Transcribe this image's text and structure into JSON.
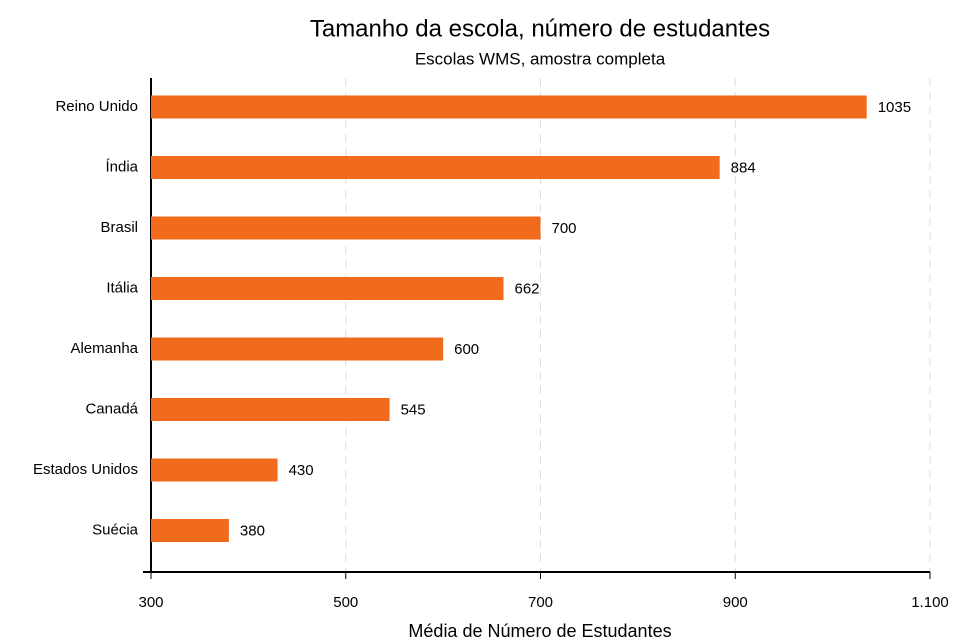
{
  "chart_data": {
    "type": "bar",
    "orientation": "horizontal",
    "title": "Tamanho da escola, número de estudantes",
    "subtitle": "Escolas WMS, amostra completa",
    "xlabel": "Média de Número de Estudantes",
    "categories": [
      "Reino Unido",
      "Índia",
      "Brasil",
      "Itália",
      "Alemanha",
      "Canadá",
      "Estados Unidos",
      "Suécia"
    ],
    "values": [
      1035,
      884,
      700,
      662,
      600,
      545,
      430,
      380
    ],
    "color": "#f26a1b",
    "xlim": [
      300,
      1100
    ],
    "xticks": [
      300,
      500,
      700,
      900,
      {
        "value": 1100,
        "label": "1.100"
      }
    ],
    "grid": true
  }
}
